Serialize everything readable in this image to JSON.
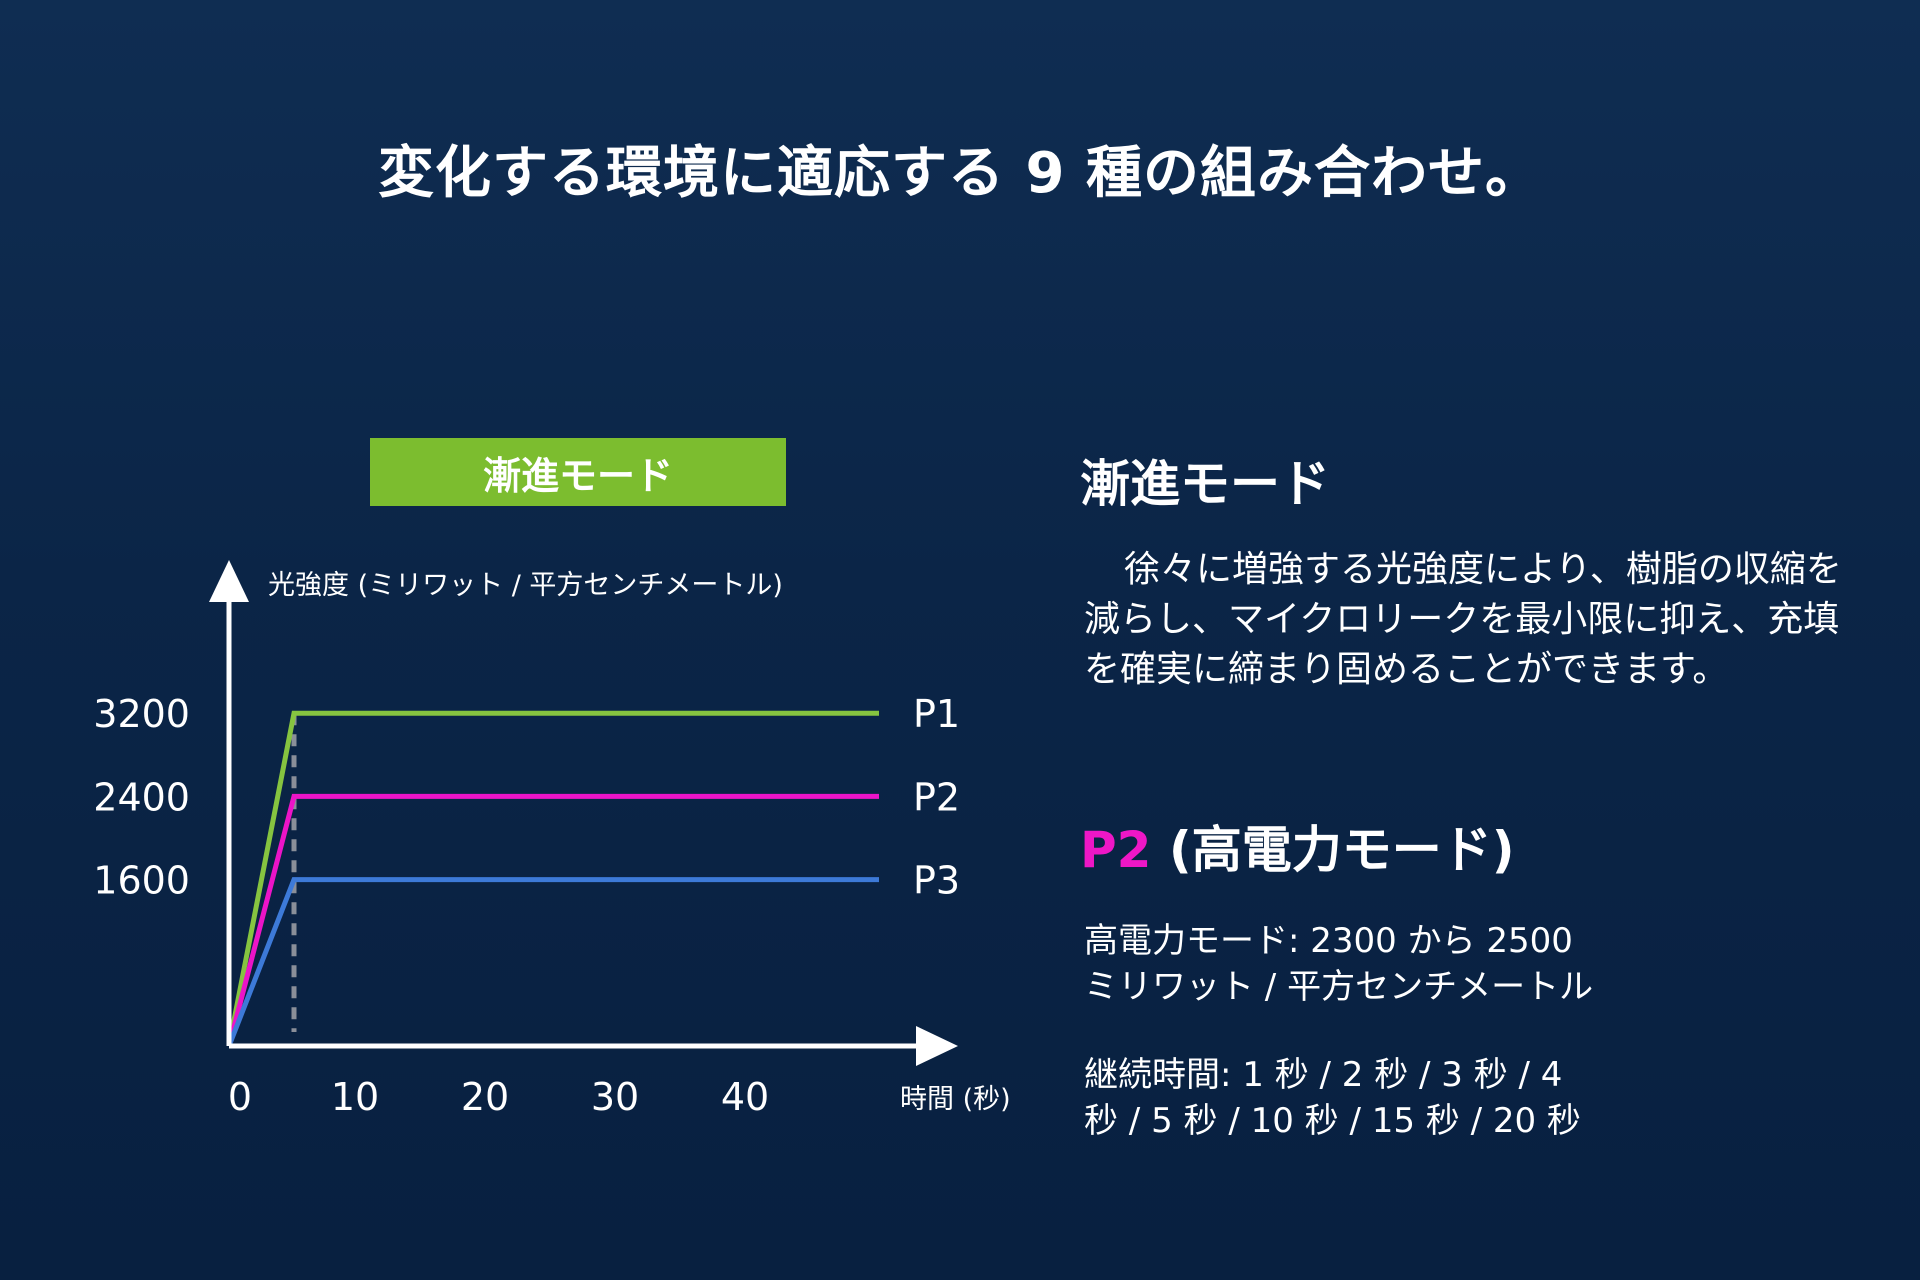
{
  "title": "変化する環境に適応する 9 種の組み合わせ。",
  "mode_badge": "漸進モード",
  "chart_data": {
    "type": "line",
    "ylabel": "光強度 (ミリワット / 平方センチメートル)",
    "xlabel": "時間 (秒)",
    "x_ticks": [
      "0",
      "10",
      "20",
      "30",
      "40"
    ],
    "y_ticks": [
      "3200",
      "2400",
      "1600"
    ],
    "series": [
      {
        "name": "P1",
        "color": "#86c440",
        "x": [
          0,
          5,
          50
        ],
        "y": [
          0,
          3200,
          3200
        ]
      },
      {
        "name": "P2",
        "color": "#ec14c8",
        "x": [
          0,
          5,
          50
        ],
        "y": [
          0,
          2400,
          2400
        ]
      },
      {
        "name": "P3",
        "color": "#3d7ad8",
        "x": [
          0,
          5,
          50
        ],
        "y": [
          0,
          1600,
          1600
        ]
      }
    ],
    "ramp_end_marker_x": 5,
    "grid": false
  },
  "right": {
    "heading": "漸進モード",
    "description": "徐々に増強する光強度により、樹脂の収縮を減らし、マイクロリークを最小限に抑え、充填を確実に締まり固めることができます。",
    "p2_tag": "P2",
    "p2_rest": " (高電力モード)",
    "power_line1": "高電力モード: 2300 から 2500",
    "power_line2": "ミリワット / 平方センチメートル",
    "duration_line1": "継続時間: 1 秒 / 2 秒 / 3 秒 / 4",
    "duration_line2": "秒 / 5 秒 / 10 秒 / 15 秒 / 20 秒"
  }
}
